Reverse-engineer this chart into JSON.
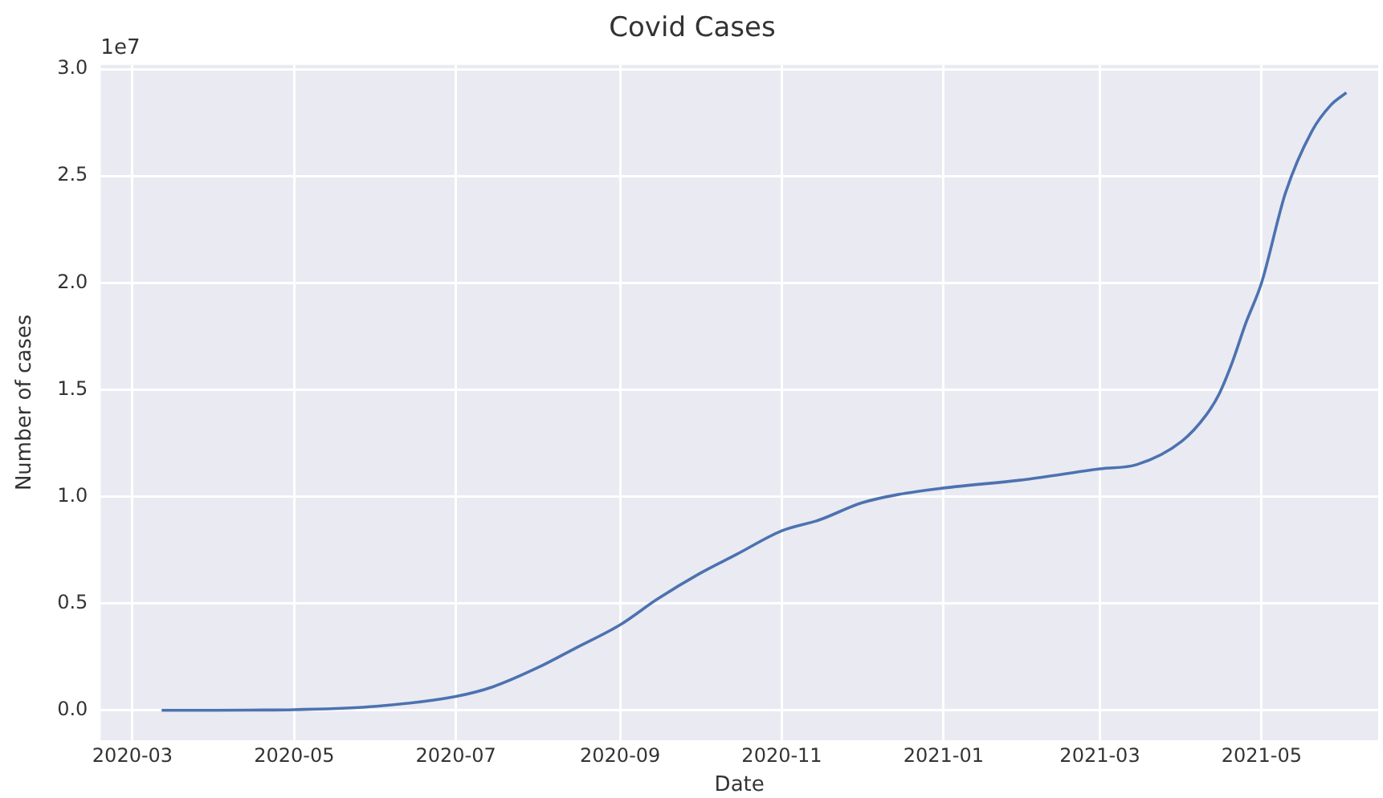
{
  "chart_data": {
    "type": "line",
    "title": "Covid Cases",
    "xlabel": "Date",
    "ylabel": "Number of cases",
    "annotations": [
      "1e7"
    ],
    "x": [
      "2020-03-12",
      "2020-04-01",
      "2020-04-15",
      "2020-05-01",
      "2020-06-01",
      "2020-07-01",
      "2020-07-15",
      "2020-08-01",
      "2020-08-15",
      "2020-09-01",
      "2020-09-15",
      "2020-10-01",
      "2020-10-15",
      "2020-11-01",
      "2020-11-15",
      "2020-12-01",
      "2020-12-15",
      "2021-01-01",
      "2021-02-01",
      "2021-03-01",
      "2021-03-15",
      "2021-04-01",
      "2021-04-10",
      "2021-04-15",
      "2021-04-20",
      "2021-04-25",
      "2021-05-01",
      "2021-05-10",
      "2021-05-20",
      "2021-05-27",
      "2021-06-02"
    ],
    "series": [
      {
        "color": "#4c72b0",
        "values": [
          0.0,
          0.0,
          0.001,
          0.003,
          0.019,
          0.065,
          0.11,
          0.2,
          0.29,
          0.4,
          0.52,
          0.64,
          0.73,
          0.84,
          0.89,
          0.97,
          1.01,
          1.04,
          1.08,
          1.13,
          1.15,
          1.26,
          1.38,
          1.48,
          1.63,
          1.81,
          2.0,
          2.42,
          2.71,
          2.83,
          2.89
        ]
      }
    ],
    "xlim": [
      "2020-02-18",
      "2021-06-14"
    ],
    "ylim": [
      -0.14,
      3.02
    ],
    "xticks": [
      {
        "value": "2020-03-01",
        "label": "2020-03"
      },
      {
        "value": "2020-05-01",
        "label": "2020-05"
      },
      {
        "value": "2020-07-01",
        "label": "2020-07"
      },
      {
        "value": "2020-09-01",
        "label": "2020-09"
      },
      {
        "value": "2020-11-01",
        "label": "2020-11"
      },
      {
        "value": "2021-01-01",
        "label": "2021-01"
      },
      {
        "value": "2021-03-01",
        "label": "2021-03"
      },
      {
        "value": "2021-05-01",
        "label": "2021-05"
      }
    ],
    "yticks": [
      {
        "value": 0,
        "label": "0.0"
      },
      {
        "value": 0.5,
        "label": "0.5"
      },
      {
        "value": 1,
        "label": "1.0"
      },
      {
        "value": 1.5,
        "label": "1.5"
      },
      {
        "value": 2,
        "label": "2.0"
      },
      {
        "value": 2.5,
        "label": "2.5"
      },
      {
        "value": 3,
        "label": "3.0"
      }
    ],
    "grid": true,
    "legend": false,
    "marker": "none",
    "line_style": "solid"
  }
}
